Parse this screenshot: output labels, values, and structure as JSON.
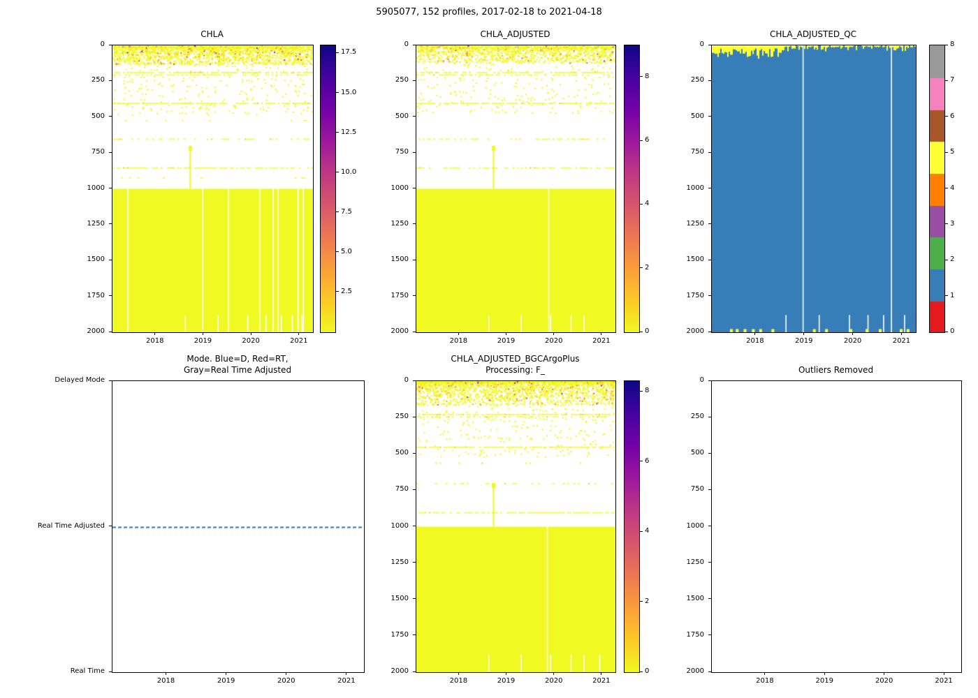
{
  "figure_title": "5905077, 152 profiles, 2017-02-18 to 2021-04-18",
  "colors": {
    "heatmap_low_yellow": "#f0f921",
    "qc_blue": "#377eb8",
    "qc_yellow": "#ffff33",
    "mode_line_blue": "#1f77b4",
    "axis": "#000000"
  },
  "chart_data": [
    {
      "id": "chla",
      "type": "heatmap",
      "title": "CHLA",
      "x_range": [
        2017.1,
        2021.28
      ],
      "x_ticks": [
        2018,
        2019,
        2020,
        2021
      ],
      "y_max": 2000,
      "y_ticks": [
        0,
        250,
        500,
        750,
        1000,
        1250,
        1500,
        1750,
        2000
      ],
      "colorbar": {
        "colormap": "plasma_r",
        "vmin": 0,
        "vmax": 18,
        "ticks": [
          {
            "value": 2.5,
            "label": "2.5"
          },
          {
            "value": 5,
            "label": "5.0"
          },
          {
            "value": 7.5,
            "label": "7.5"
          },
          {
            "value": 10,
            "label": "10.0"
          },
          {
            "value": 12.5,
            "label": "12.5"
          },
          {
            "value": 15,
            "label": "15.0"
          },
          {
            "value": 17.5,
            "label": "17.5"
          }
        ]
      },
      "features": {
        "dot_colors": [
          "#f0f921",
          "#fdca26",
          "#fb9f3a",
          "#d8576b",
          "#9c179e"
        ],
        "dot_weights": [
          0.86,
          0.07,
          0.04,
          0.02,
          0.01
        ],
        "surface_speckle": {
          "depth_min": 0,
          "depth_max": 130,
          "count": 2600
        },
        "mid_speckle": {
          "depth_min": 130,
          "depth_max": 480,
          "count": 260
        },
        "lines": [
          {
            "depth": 185,
            "density": 0.75
          },
          {
            "depth": 202,
            "density": 0.5
          },
          {
            "depth": 400,
            "density": 0.8
          },
          {
            "depth": 520,
            "density": 0.1
          },
          {
            "depth": 650,
            "density": 0.4
          },
          {
            "depth": 850,
            "density": 0.75
          },
          {
            "depth": 920,
            "density": 0.08
          }
        ],
        "spike": {
          "time": 2018.72,
          "depth_from": 700,
          "depth_to": 1000
        },
        "deep_block": {
          "depth_from": 1000,
          "depth_to": 2000,
          "gap_times": [
            2017.42,
            2018.98,
            2019.52,
            2020.17,
            2020.45,
            2020.55,
            2020.97,
            2021.08
          ],
          "notch_times": [
            2018.62,
            2019.3,
            2019.92,
            2020.3,
            2020.62,
            2020.85,
            2021.05
          ]
        }
      }
    },
    {
      "id": "chla_adjusted",
      "type": "heatmap",
      "title": "CHLA_ADJUSTED",
      "x_range": [
        2017.1,
        2021.28
      ],
      "x_ticks": [
        2018,
        2019,
        2020,
        2021
      ],
      "y_max": 2000,
      "y_ticks": [
        0,
        250,
        500,
        750,
        1000,
        1250,
        1500,
        1750,
        2000
      ],
      "colorbar": {
        "colormap": "plasma_r",
        "vmin": 0,
        "vmax": 9,
        "ticks": [
          {
            "value": 0,
            "label": "0"
          },
          {
            "value": 2,
            "label": "2"
          },
          {
            "value": 4,
            "label": "4"
          },
          {
            "value": 6,
            "label": "6"
          },
          {
            "value": 8,
            "label": "8"
          }
        ]
      },
      "features": {
        "dot_colors": [
          "#f0f921",
          "#fdca26",
          "#fb9f3a",
          "#d8576b",
          "#9c179e"
        ],
        "dot_weights": [
          0.88,
          0.07,
          0.03,
          0.015,
          0.005
        ],
        "surface_speckle": {
          "depth_min": 0,
          "depth_max": 120,
          "count": 1800
        },
        "mid_speckle": {
          "depth_min": 120,
          "depth_max": 470,
          "count": 220
        },
        "lines": [
          {
            "depth": 185,
            "density": 0.7
          },
          {
            "depth": 202,
            "density": 0.45
          },
          {
            "depth": 400,
            "density": 0.75
          },
          {
            "depth": 650,
            "density": 0.35
          },
          {
            "depth": 850,
            "density": 0.6
          }
        ],
        "spike": {
          "time": 2018.72,
          "depth_from": 700,
          "depth_to": 1000
        },
        "deep_block": {
          "depth_from": 1000,
          "depth_to": 2000,
          "gap_times": [
            2019.88
          ],
          "notch_times": [
            2018.62,
            2019.3,
            2019.92,
            2020.35,
            2020.62
          ]
        }
      }
    },
    {
      "id": "chla_adjusted_qc",
      "type": "qc_heatmap",
      "title": "CHLA_ADJUSTED_QC",
      "x_range": [
        2017.1,
        2021.28
      ],
      "x_ticks": [
        2018,
        2019,
        2020,
        2021
      ],
      "y_max": 2000,
      "y_ticks": [
        0,
        250,
        500,
        750,
        1000,
        1250,
        1500,
        1750,
        2000
      ],
      "colorbar": {
        "colormap": "set1_discrete",
        "colors_bottom_to_top": [
          "#e41a1c",
          "#377eb8",
          "#4daf4a",
          "#984ea3",
          "#ff7f00",
          "#ffff33",
          "#a65628",
          "#f781bf",
          "#999999"
        ],
        "vmin": 0,
        "vmax": 8,
        "ticks": [
          {
            "value": 0,
            "label": "0"
          },
          {
            "value": 1,
            "label": "1"
          },
          {
            "value": 2,
            "label": "2"
          },
          {
            "value": 3,
            "label": "3"
          },
          {
            "value": 4,
            "label": "4"
          },
          {
            "value": 5,
            "label": "5"
          },
          {
            "value": 6,
            "label": "6"
          },
          {
            "value": 7,
            "label": "7"
          },
          {
            "value": 8,
            "label": "8"
          }
        ]
      },
      "features": {
        "fill_color": "#377eb8",
        "surface_color": "#ffff33",
        "surface": {
          "dense_until": 2018.55,
          "max_depth": 95
        },
        "gap_times": [
          2018.97,
          2020.78
        ],
        "notch_times": [
          2018.62,
          2019.3,
          2019.92,
          2020.3,
          2020.62,
          2021.05
        ],
        "bottom_mark_times": [
          2017.5,
          2017.62,
          2017.78,
          2017.95,
          2018.1,
          2018.35,
          2019.2,
          2019.45,
          2019.95,
          2020.28,
          2020.55,
          2020.98,
          2021.12
        ]
      }
    },
    {
      "id": "mode",
      "type": "category_line",
      "title": "Mode. Blue=D, Red=RT,\nGray=Real Time Adjusted",
      "x_range": [
        2017.1,
        2021.28
      ],
      "x_ticks": [
        2018,
        2019,
        2020,
        2021
      ],
      "y_categories": [
        "Delayed Mode",
        "Real Time Adjusted",
        "Real Time"
      ],
      "line": {
        "category": "Real Time Adjusted",
        "color": "#1f77b4",
        "style": "dashed"
      }
    },
    {
      "id": "bgc",
      "type": "heatmap",
      "title": "CHLA_ADJUSTED_BGCArgoPlus\nProcessing: F_",
      "x_range": [
        2017.1,
        2021.28
      ],
      "x_ticks": [
        2018,
        2019,
        2020,
        2021
      ],
      "y_max": 2000,
      "y_ticks": [
        0,
        250,
        500,
        750,
        1000,
        1250,
        1500,
        1750,
        2000
      ],
      "colorbar": {
        "colormap": "plasma_r",
        "vmin": 0,
        "vmax": 8.3,
        "ticks": [
          {
            "value": 0,
            "label": "0"
          },
          {
            "value": 2,
            "label": "2"
          },
          {
            "value": 4,
            "label": "4"
          },
          {
            "value": 6,
            "label": "6"
          },
          {
            "value": 8,
            "label": "8"
          }
        ]
      },
      "features": {
        "dot_colors": [
          "#f0f921",
          "#fdca26",
          "#fb9f3a",
          "#d8576b",
          "#9c179e"
        ],
        "dot_weights": [
          0.87,
          0.07,
          0.04,
          0.015,
          0.005
        ],
        "surface_speckle": {
          "depth_min": 0,
          "depth_max": 160,
          "count": 2400
        },
        "mid_speckle": {
          "depth_min": 160,
          "depth_max": 520,
          "count": 260
        },
        "lines": [
          {
            "depth": 225,
            "density": 0.8
          },
          {
            "depth": 242,
            "density": 0.5
          },
          {
            "depth": 450,
            "density": 0.8
          },
          {
            "depth": 560,
            "density": 0.1
          },
          {
            "depth": 700,
            "density": 0.3
          },
          {
            "depth": 900,
            "density": 0.7
          }
        ],
        "spike": {
          "time": 2018.72,
          "depth_from": 700,
          "depth_to": 1000
        },
        "deep_block": {
          "depth_from": 1000,
          "depth_to": 2000,
          "gap_times": [
            2019.85
          ],
          "notch_times": [
            2018.62,
            2019.3,
            2019.92,
            2020.35,
            2020.62,
            2020.95
          ]
        }
      }
    },
    {
      "id": "outliers",
      "type": "empty",
      "title": "Outliers Removed",
      "x_range": [
        2017.1,
        2021.28
      ],
      "x_ticks": [
        2018,
        2019,
        2020,
        2021
      ],
      "y_max": 2000,
      "y_ticks": [
        0,
        250,
        500,
        750,
        1000,
        1250,
        1500,
        1750,
        2000
      ]
    }
  ]
}
